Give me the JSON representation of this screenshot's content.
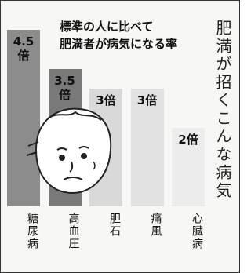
{
  "chart_data": {
    "type": "bar",
    "title": "肥満が招くこんな病気",
    "subtitle": [
      "標準の人に比べて",
      "肥満者が病気になる率"
    ],
    "categories": [
      "糖尿病",
      "高血圧",
      "胆石",
      "痛風",
      "心臓病"
    ],
    "values": [
      4.5,
      3.5,
      3,
      3,
      2
    ],
    "value_labels": [
      "4.5倍",
      "3.5倍",
      "3倍",
      "3倍",
      "2倍"
    ],
    "colors": [
      "#8c8c8c",
      "#7a7a7a",
      "#d9d9d9",
      "#e2e2e2",
      "#ececec"
    ]
  }
}
